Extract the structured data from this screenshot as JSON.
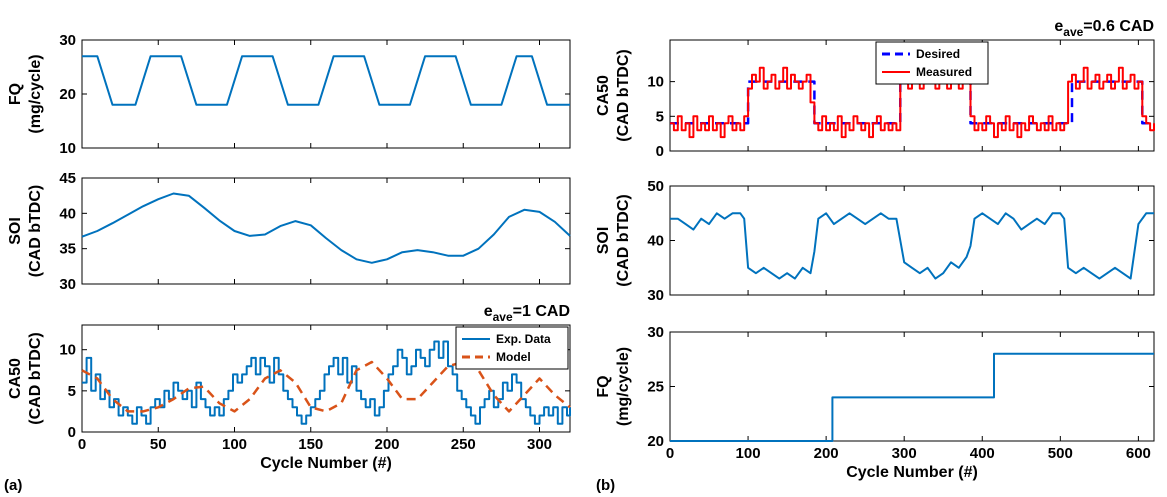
{
  "chart_data": [
    {
      "type": "line",
      "group": "a",
      "ylabel": [
        "FQ",
        "(mg/cycle)"
      ],
      "xlim": [
        0,
        320
      ],
      "ylim": [
        10,
        30
      ],
      "xticks": [
        0,
        50,
        100,
        150,
        200,
        250,
        300
      ],
      "yticks": [
        10,
        20,
        30
      ],
      "show_xticklabels": false,
      "series": [
        {
          "name": "",
          "color": "#0072BD",
          "style": "solid",
          "step": false,
          "x": [
            0,
            5,
            10,
            20,
            25,
            35,
            45,
            55,
            65,
            75,
            85,
            95,
            105,
            115,
            125,
            135,
            145,
            155,
            165,
            175,
            185,
            195,
            205,
            215,
            225,
            235,
            245,
            255,
            265,
            275,
            285,
            295,
            305,
            320
          ],
          "y": [
            27,
            27,
            27,
            18,
            18,
            18,
            27,
            27,
            27,
            18,
            18,
            18,
            27,
            27,
            27,
            18,
            18,
            18,
            27,
            27,
            27,
            18,
            18,
            18,
            27,
            27,
            27,
            18,
            18,
            18,
            27,
            27,
            18,
            18
          ]
        }
      ]
    },
    {
      "type": "line",
      "group": "a",
      "ylabel": [
        "SOI",
        "(CAD bTDC)"
      ],
      "xlim": [
        0,
        320
      ],
      "ylim": [
        30,
        45
      ],
      "xticks": [
        0,
        50,
        100,
        150,
        200,
        250,
        300
      ],
      "yticks": [
        30,
        35,
        40,
        45
      ],
      "show_xticklabels": false,
      "series": [
        {
          "name": "",
          "color": "#0072BD",
          "style": "solid",
          "step": false,
          "x": [
            0,
            10,
            20,
            30,
            40,
            50,
            60,
            70,
            80,
            90,
            100,
            110,
            120,
            130,
            140,
            150,
            160,
            170,
            180,
            190,
            200,
            210,
            220,
            230,
            240,
            250,
            260,
            270,
            280,
            290,
            300,
            310,
            320
          ],
          "y": [
            36.7,
            37.5,
            38.6,
            39.8,
            41,
            42,
            42.8,
            42.5,
            40.8,
            39,
            37.5,
            36.8,
            37,
            38.2,
            38.9,
            38.3,
            36.5,
            34.8,
            33.5,
            33,
            33.5,
            34.5,
            34.8,
            34.5,
            34,
            34,
            35,
            37,
            39.5,
            40.5,
            40.2,
            38.8,
            36.8
          ]
        }
      ]
    },
    {
      "type": "line",
      "group": "a",
      "ylabel": [
        "CA50",
        "(CAD bTDC)"
      ],
      "xlabel": "Cycle Number (#)",
      "xlim": [
        0,
        320
      ],
      "ylim": [
        0,
        13
      ],
      "xticks": [
        0,
        50,
        100,
        150,
        200,
        250,
        300
      ],
      "yticks": [
        0,
        5,
        10
      ],
      "show_xticklabels": true,
      "error_label": {
        "e": "e",
        "sub": "ave",
        "text": "=1 CAD"
      },
      "legend": {
        "position": "top-right"
      },
      "series": [
        {
          "name": "Exp. Data",
          "color": "#0072BD",
          "style": "solid",
          "step": true,
          "x": [
            0,
            3,
            6,
            9,
            12,
            15,
            18,
            21,
            24,
            27,
            30,
            33,
            36,
            39,
            42,
            45,
            48,
            51,
            54,
            57,
            60,
            63,
            66,
            69,
            72,
            75,
            78,
            81,
            84,
            87,
            90,
            93,
            96,
            99,
            102,
            105,
            108,
            111,
            114,
            117,
            120,
            123,
            126,
            129,
            132,
            135,
            138,
            141,
            144,
            147,
            150,
            153,
            156,
            159,
            162,
            165,
            168,
            171,
            174,
            177,
            180,
            183,
            186,
            189,
            192,
            195,
            198,
            201,
            204,
            207,
            210,
            213,
            216,
            219,
            222,
            225,
            228,
            231,
            234,
            237,
            240,
            243,
            246,
            249,
            252,
            255,
            258,
            261,
            264,
            267,
            270,
            273,
            276,
            279,
            282,
            285,
            288,
            291,
            294,
            297,
            300,
            303,
            306,
            309,
            312,
            315,
            318,
            320
          ],
          "y": [
            6,
            9,
            5,
            7,
            4,
            5,
            3,
            4,
            2,
            3,
            2,
            1,
            3,
            2,
            1,
            3,
            4,
            3,
            5,
            4,
            6,
            5,
            4,
            5,
            3,
            6,
            4,
            3,
            2,
            3,
            2,
            4,
            5,
            7,
            6,
            7,
            8,
            9,
            7,
            9,
            8,
            6,
            9,
            7,
            5,
            4,
            3,
            2,
            1,
            2,
            3,
            4,
            5,
            7,
            8,
            9,
            7,
            9,
            6,
            8,
            5,
            4,
            3,
            4,
            2,
            3,
            5,
            7,
            8,
            10,
            9,
            7,
            8,
            10,
            9,
            8,
            10,
            11,
            9,
            11,
            8,
            7,
            5,
            4,
            3,
            2,
            1,
            3,
            4,
            5,
            3,
            4,
            6,
            5,
            7,
            6,
            4,
            3,
            2,
            1,
            2,
            3,
            2,
            3,
            1,
            3,
            2,
            3
          ]
        },
        {
          "name": "Model",
          "color": "#D95319",
          "style": "dashed",
          "step": false,
          "x": [
            0,
            10,
            20,
            30,
            40,
            50,
            60,
            70,
            80,
            90,
            100,
            110,
            120,
            130,
            140,
            150,
            160,
            170,
            180,
            190,
            200,
            210,
            220,
            230,
            240,
            250,
            260,
            270,
            280,
            290,
            300,
            310,
            320
          ],
          "y": [
            7.5,
            6.5,
            4,
            2.5,
            2.5,
            3,
            4,
            5.3,
            5.5,
            3.5,
            2.5,
            4,
            6.5,
            7.5,
            6,
            3,
            2.5,
            3.5,
            7.5,
            8.5,
            6.5,
            4,
            4,
            6,
            8,
            8.5,
            7.5,
            4.5,
            2.5,
            4.5,
            6.5,
            4.5,
            3
          ]
        }
      ]
    },
    {
      "type": "line",
      "group": "b",
      "ylabel": [
        "CA50",
        "(CAD bTDC)"
      ],
      "xlim": [
        0,
        620
      ],
      "ylim": [
        0,
        16
      ],
      "xticks": [
        0,
        100,
        200,
        300,
        400,
        500,
        600
      ],
      "yticks": [
        0,
        5,
        10
      ],
      "show_xticklabels": false,
      "error_label": {
        "e": "e",
        "sub": "ave",
        "text": "=0.6 CAD"
      },
      "legend": {
        "position": "top-center"
      },
      "series": [
        {
          "name": "Desired",
          "color": "#0000FF",
          "style": "dashed",
          "step": true,
          "x": [
            0,
            95,
            100,
            180,
            185,
            290,
            295,
            380,
            385,
            510,
            515,
            600,
            605,
            620
          ],
          "y": [
            4,
            4,
            10,
            10,
            4,
            4,
            10,
            10,
            4,
            4,
            10,
            10,
            4,
            4
          ]
        },
        {
          "name": "Measured",
          "color": "#FF0000",
          "style": "solid",
          "step": true,
          "x": [
            0,
            5,
            10,
            15,
            20,
            25,
            30,
            35,
            40,
            45,
            50,
            55,
            60,
            65,
            70,
            75,
            80,
            85,
            90,
            95,
            100,
            105,
            110,
            115,
            120,
            125,
            130,
            135,
            140,
            145,
            150,
            155,
            160,
            165,
            170,
            175,
            180,
            185,
            190,
            195,
            200,
            205,
            210,
            215,
            220,
            225,
            230,
            235,
            240,
            245,
            250,
            255,
            260,
            265,
            270,
            275,
            280,
            285,
            290,
            295,
            300,
            305,
            310,
            315,
            320,
            325,
            330,
            335,
            340,
            345,
            350,
            355,
            360,
            365,
            370,
            375,
            380,
            385,
            390,
            395,
            400,
            405,
            410,
            415,
            420,
            425,
            430,
            435,
            440,
            445,
            450,
            455,
            460,
            465,
            470,
            475,
            480,
            485,
            490,
            495,
            500,
            505,
            510,
            515,
            520,
            525,
            530,
            535,
            540,
            545,
            550,
            555,
            560,
            565,
            570,
            575,
            580,
            585,
            590,
            595,
            600,
            605,
            610,
            615,
            620
          ],
          "y": [
            4,
            3,
            5,
            3,
            4,
            2,
            5,
            3,
            4,
            3,
            5,
            3,
            4,
            2,
            4,
            5,
            3,
            4,
            3,
            5,
            9,
            11,
            10,
            12,
            9,
            10,
            11,
            9,
            10,
            12,
            9,
            11,
            10,
            9,
            10,
            11,
            7,
            4,
            3,
            5,
            3,
            4,
            3,
            5,
            2,
            4,
            3,
            5,
            4,
            3,
            4,
            2,
            4,
            5,
            3,
            4,
            3,
            4,
            3,
            10,
            13,
            9,
            11,
            10,
            9,
            11,
            10,
            12,
            9,
            10,
            11,
            9,
            10,
            11,
            9,
            10,
            10,
            5,
            3,
            4,
            3,
            5,
            4,
            2,
            4,
            3,
            5,
            3,
            4,
            2,
            4,
            3,
            5,
            4,
            3,
            4,
            3,
            5,
            3,
            4,
            3,
            4,
            10,
            11,
            9,
            10,
            12,
            9,
            10,
            11,
            9,
            10,
            11,
            9,
            10,
            12,
            9,
            10,
            11,
            9,
            10,
            5,
            4,
            3,
            4
          ]
        }
      ]
    },
    {
      "type": "line",
      "group": "b",
      "ylabel": [
        "SOI",
        "(CAD bTDC)"
      ],
      "xlim": [
        0,
        620
      ],
      "ylim": [
        30,
        50
      ],
      "xticks": [
        0,
        100,
        200,
        300,
        400,
        500,
        600
      ],
      "yticks": [
        30,
        40,
        50
      ],
      "show_xticklabels": false,
      "series": [
        {
          "name": "",
          "color": "#0072BD",
          "style": "solid",
          "step": false,
          "x": [
            0,
            10,
            20,
            30,
            40,
            50,
            60,
            70,
            80,
            90,
            95,
            100,
            110,
            120,
            130,
            140,
            150,
            160,
            170,
            180,
            185,
            190,
            200,
            210,
            220,
            230,
            240,
            250,
            260,
            270,
            280,
            290,
            295,
            300,
            310,
            320,
            330,
            340,
            350,
            360,
            370,
            380,
            385,
            390,
            400,
            410,
            420,
            430,
            440,
            450,
            460,
            470,
            480,
            490,
            500,
            505,
            510,
            520,
            530,
            540,
            550,
            560,
            570,
            580,
            590,
            600,
            610,
            620
          ],
          "y": [
            44,
            44,
            43,
            42,
            44,
            43,
            45,
            44,
            45,
            45,
            44,
            35,
            34,
            35,
            34,
            33,
            34,
            33,
            35,
            34,
            38,
            44,
            45,
            43,
            44,
            45,
            44,
            43,
            44,
            45,
            44,
            44,
            40,
            36,
            35,
            34,
            35,
            33,
            34,
            36,
            35,
            37,
            39,
            44,
            45,
            44,
            43,
            45,
            44,
            42,
            43,
            44,
            43,
            45,
            45,
            44,
            35,
            34,
            35,
            34,
            33,
            34,
            35,
            34,
            33,
            43,
            45,
            45
          ]
        }
      ]
    },
    {
      "type": "line",
      "group": "b",
      "ylabel": [
        "FQ",
        "(mg/cycle)"
      ],
      "xlabel": "Cycle Number (#)",
      "xlim": [
        0,
        620
      ],
      "ylim": [
        20,
        30
      ],
      "xticks": [
        0,
        100,
        200,
        300,
        400,
        500,
        600
      ],
      "yticks": [
        20,
        25,
        30
      ],
      "show_xticklabels": true,
      "series": [
        {
          "name": "",
          "color": "#0072BD",
          "style": "solid",
          "step": true,
          "x": [
            0,
            208,
            415,
            620
          ],
          "y": [
            20,
            24,
            28,
            28
          ]
        }
      ]
    }
  ],
  "labels": {
    "panel_a": "(a)",
    "panel_b": "(b)"
  }
}
